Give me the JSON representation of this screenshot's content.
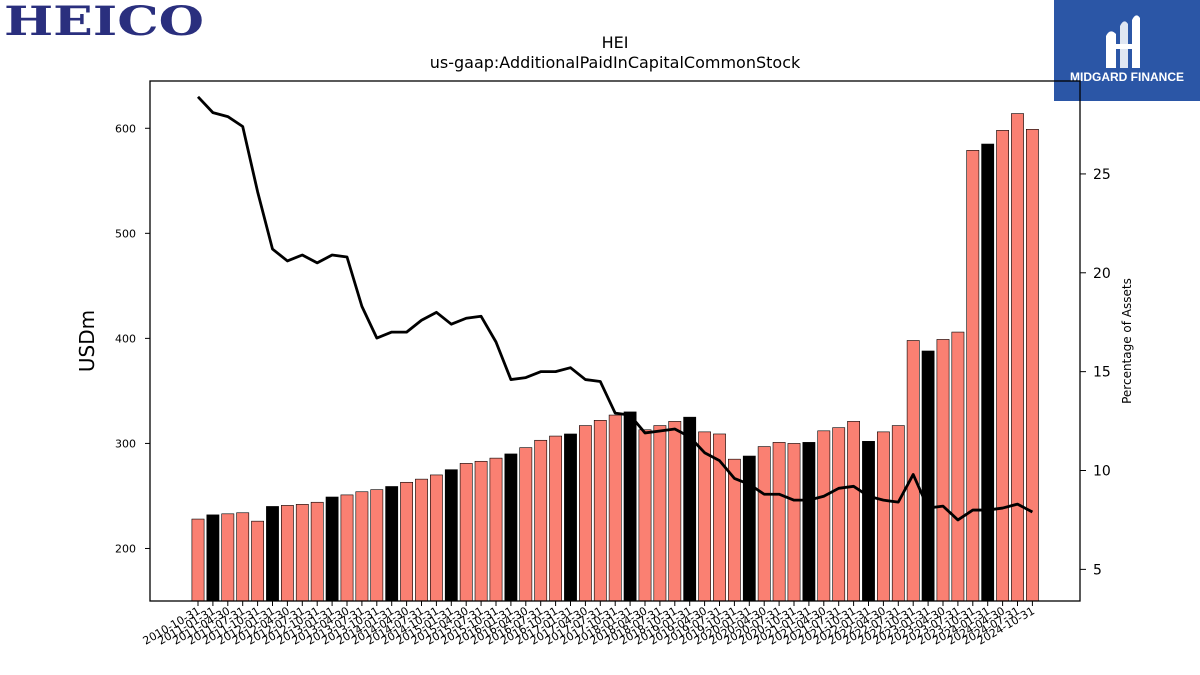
{
  "logos": {
    "left_text": "HEICO",
    "right_text": "MIDGARD FINANCE"
  },
  "colors": {
    "bar_default": "#fa8072",
    "bar_highlight": "#000000",
    "line": "#000000",
    "logo_left": "#2a2f7e",
    "logo_right_bg": "#2b56a6"
  },
  "chart_data": {
    "type": "bar",
    "title": "HEI",
    "subtitle": "us-gaap:AdditionalPaidInCapitalCommonStock",
    "ylabel": "USDm",
    "y2label": "Percentage of Assets",
    "ylim": [
      150,
      645
    ],
    "y2lim": [
      3.4,
      29.7
    ],
    "yticks": [
      200,
      300,
      400,
      500,
      600
    ],
    "y2ticks": [
      5,
      10,
      15,
      20,
      25
    ],
    "grid": false,
    "categories": [
      "2010-10-31",
      "2011-01-31",
      "2011-04-30",
      "2011-07-31",
      "2011-10-31",
      "2012-01-31",
      "2012-04-30",
      "2012-07-31",
      "2012-10-31",
      "2013-01-31",
      "2013-04-30",
      "2013-07-31",
      "2013-10-31",
      "2014-01-31",
      "2014-04-30",
      "2014-07-31",
      "2014-10-31",
      "2015-01-31",
      "2015-04-30",
      "2015-07-31",
      "2015-10-31",
      "2016-01-31",
      "2016-04-30",
      "2016-07-31",
      "2016-10-31",
      "2017-01-31",
      "2017-04-30",
      "2017-07-31",
      "2017-10-31",
      "2018-01-31",
      "2018-04-30",
      "2018-07-31",
      "2018-10-31",
      "2019-01-31",
      "2019-04-30",
      "2019-07-31",
      "2019-10-31",
      "2020-01-31",
      "2020-04-30",
      "2020-07-31",
      "2020-10-31",
      "2021-01-31",
      "2021-04-30",
      "2021-07-31",
      "2021-10-31",
      "2022-01-31",
      "2022-04-30",
      "2022-07-31",
      "2022-10-31",
      "2023-01-31",
      "2023-04-30",
      "2023-07-31",
      "2023-10-31",
      "2024-01-31",
      "2024-04-30",
      "2024-07-31",
      "2024-10-31"
    ],
    "series": [
      {
        "type": "bar",
        "values": [
          228,
          232,
          233,
          234,
          226,
          240,
          241,
          242,
          244,
          249,
          251,
          254,
          256,
          259,
          263,
          266,
          270,
          275,
          281,
          283,
          286,
          290,
          296,
          303,
          307,
          309,
          317,
          322,
          327,
          330,
          313,
          317,
          321,
          325,
          311,
          309,
          285,
          288,
          297,
          301,
          300,
          301,
          312,
          315,
          321,
          302,
          311,
          317,
          398,
          388,
          399,
          406,
          579,
          585,
          598,
          614,
          599
        ],
        "highlight": [
          false,
          true,
          false,
          false,
          false,
          true,
          false,
          false,
          false,
          true,
          false,
          false,
          false,
          true,
          false,
          false,
          false,
          true,
          false,
          false,
          false,
          true,
          false,
          false,
          false,
          true,
          false,
          false,
          false,
          true,
          false,
          false,
          false,
          true,
          false,
          false,
          false,
          true,
          false,
          false,
          false,
          true,
          false,
          false,
          false,
          true,
          false,
          false,
          false,
          true,
          false,
          false,
          false,
          true,
          false,
          false,
          false
        ]
      },
      {
        "type": "line",
        "axis": "right",
        "values": [
          28.9,
          28.1,
          27.9,
          27.4,
          24.1,
          21.2,
          20.6,
          20.9,
          20.5,
          20.9,
          20.8,
          18.3,
          16.7,
          17.0,
          17.0,
          17.6,
          18.0,
          17.4,
          17.7,
          17.8,
          16.5,
          14.6,
          14.7,
          15.0,
          15.0,
          15.2,
          14.6,
          14.5,
          12.9,
          12.8,
          11.9,
          12.0,
          12.1,
          11.7,
          10.9,
          10.5,
          9.6,
          9.3,
          8.8,
          8.8,
          8.5,
          8.5,
          8.7,
          9.1,
          9.2,
          8.7,
          8.5,
          8.4,
          9.8,
          8.1,
          8.2,
          7.5,
          8.0,
          8.0,
          8.1,
          8.3,
          7.9
        ]
      }
    ]
  }
}
